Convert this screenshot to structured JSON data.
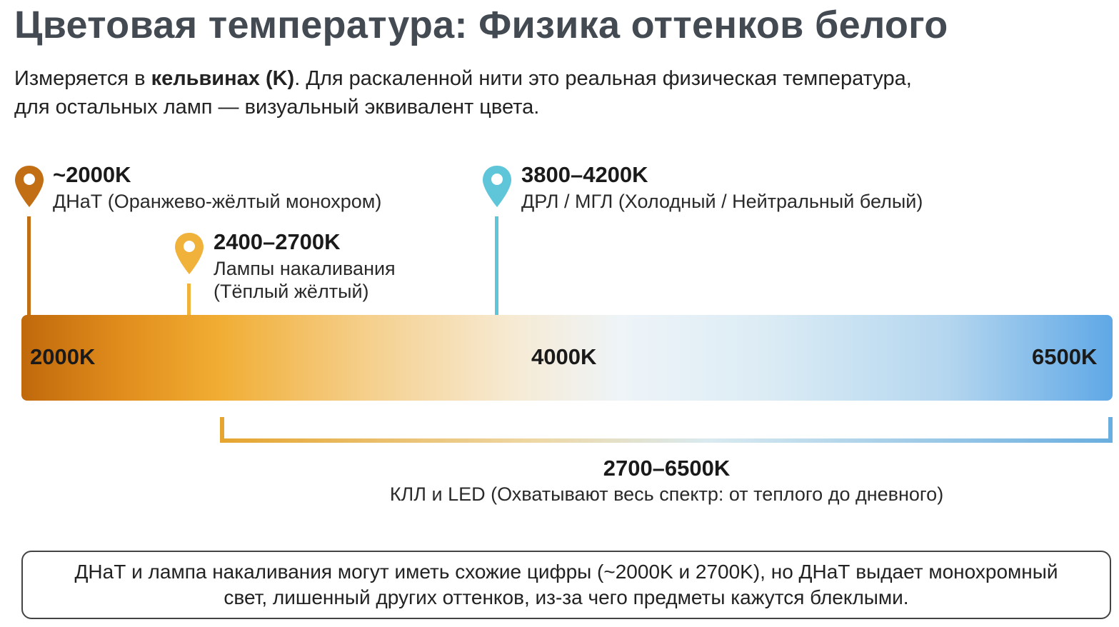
{
  "title": "Цветовая температура: Физика оттенков белого",
  "intro": {
    "part1": "Измеряется в ",
    "bold": "кельвинах (K)",
    "part2": ". Для раскаленной нити это реальная физическая температура,",
    "line2": "для остальных ламп — визуальный эквивалент цвета."
  },
  "markers": [
    {
      "title": "~2000K",
      "desc": "ДНаТ (Оранжево-жёлтый монохром)",
      "color": "#c26e14",
      "icon": "map-pin-icon"
    },
    {
      "title": "2400–2700K",
      "desc_line1": "Лампы накаливания",
      "desc_line2": "(Тёплый жёлтый)",
      "color": "#f0b23a",
      "icon": "map-pin-icon"
    },
    {
      "title": "3800–4200K",
      "desc": "ДРЛ / МГЛ (Холодный / Нейтральный белый)",
      "color": "#5ec6d8",
      "icon": "map-pin-icon"
    }
  ],
  "scale": {
    "labels": [
      "2000K",
      "4000K",
      "6500K"
    ],
    "gradient_colors": [
      "#c0690c",
      "#f1ad33",
      "#f6ead3",
      "#dcecf5",
      "#5fa8e6"
    ]
  },
  "range": {
    "title": "2700–6500K",
    "desc": "КЛЛ и LED (Охватывают весь спектр: от теплого до дневного)"
  },
  "note": "ДНаТ и лампа накаливания могут иметь схожие цифры (~2000K и 2700K), но ДНаТ выдает монохромный свет, лишенный других оттенков, из-за чего предметы кажутся блеклыми."
}
